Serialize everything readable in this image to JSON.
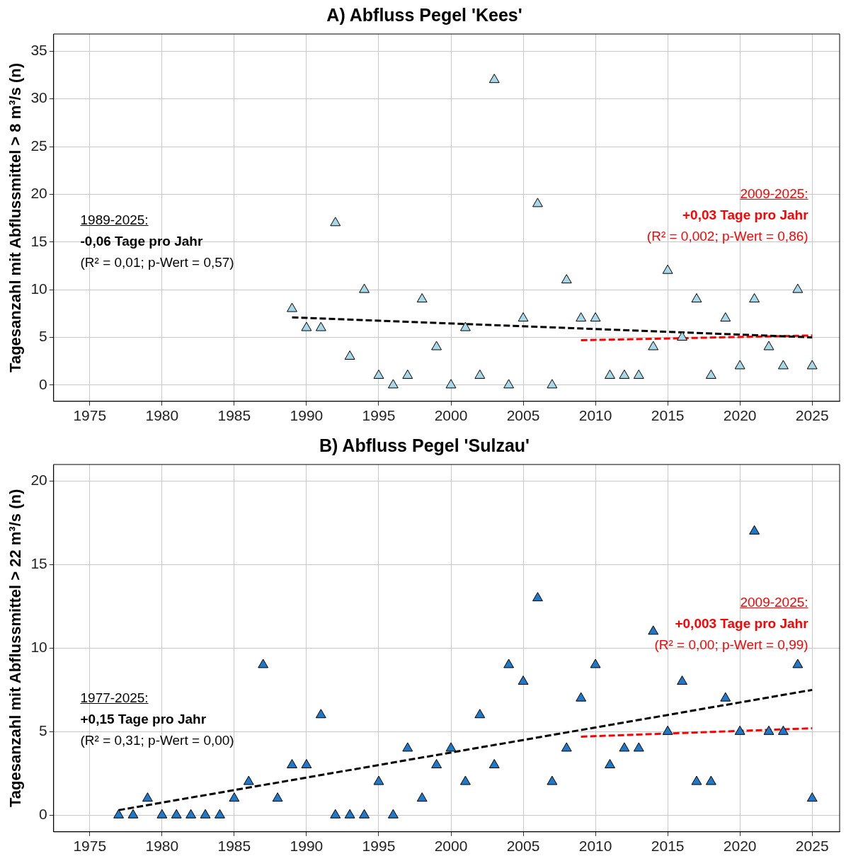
{
  "chart_data": [
    {
      "type": "scatter",
      "title": "A) Abfluss Pegel 'Kees'",
      "ylabel": "Tagesanzahl mit Abflussmittel > 8 m³/s (n)",
      "x": [
        1989,
        1990,
        1991,
        1992,
        1993,
        1994,
        1995,
        1996,
        1997,
        1998,
        1999,
        2000,
        2001,
        2002,
        2003,
        2004,
        2005,
        2006,
        2007,
        2008,
        2009,
        2010,
        2011,
        2012,
        2013,
        2014,
        2015,
        2016,
        2017,
        2018,
        2019,
        2020,
        2021,
        2022,
        2023,
        2024,
        2025
      ],
      "series": [
        {
          "type": "scatter",
          "marker": "triangle",
          "color": "#a6d8e8",
          "values": [
            8,
            6,
            6,
            17,
            3,
            10,
            1,
            0,
            1,
            9,
            4,
            0,
            6,
            1,
            32,
            0,
            7,
            19,
            0,
            11,
            7,
            7,
            1,
            1,
            1,
            4,
            12,
            5,
            9,
            1,
            7,
            2,
            9,
            4,
            2,
            10,
            2
          ]
        },
        {
          "type": "line",
          "color": "#000000",
          "line_style": "dashed",
          "x": [
            1989,
            2025
          ],
          "values": [
            7.1,
            5.0
          ]
        },
        {
          "type": "line",
          "color": "#ff0000",
          "line_style": "dashed",
          "x": [
            2009,
            2025
          ],
          "values": [
            4.7,
            5.2
          ]
        }
      ],
      "grid": true,
      "xlim": [
        1972.5,
        2026.9
      ],
      "xticks": [
        1975,
        1980,
        1985,
        1990,
        1995,
        2000,
        2005,
        2010,
        2015,
        2020,
        2025
      ],
      "ylim": [
        -1.7,
        36.8
      ],
      "yticks": [
        0,
        5,
        10,
        15,
        20,
        25,
        30,
        35
      ],
      "annotations": [
        "1989-2025:",
        "-0,06 Tage pro Jahr",
        "(R² = 0,01; p-Wert = 0,57)",
        "2009-2025:",
        "+0,03 Tage pro Jahr",
        "(R² = 0,002; p-Wert = 0,86)"
      ]
    },
    {
      "type": "scatter",
      "title": "B) Abfluss Pegel 'Sulzau'",
      "ylabel": "Tagesanzahl mit Abflussmittel > 22 m³/s (n)",
      "x": [
        1977,
        1978,
        1979,
        1980,
        1981,
        1982,
        1983,
        1984,
        1985,
        1986,
        1987,
        1988,
        1989,
        1990,
        1991,
        1992,
        1993,
        1994,
        1995,
        1996,
        1997,
        1998,
        1999,
        2000,
        2001,
        2002,
        2003,
        2004,
        2005,
        2006,
        2007,
        2008,
        2009,
        2010,
        2011,
        2012,
        2013,
        2014,
        2015,
        2016,
        2017,
        2018,
        2019,
        2020,
        2021,
        2022,
        2023,
        2024,
        2025
      ],
      "series": [
        {
          "type": "scatter",
          "marker": "triangle",
          "color": "#1f78c8",
          "values": [
            0,
            0,
            1,
            0,
            0,
            0,
            0,
            0,
            1,
            2,
            9,
            1,
            3,
            3,
            6,
            0,
            0,
            0,
            2,
            0,
            4,
            1,
            3,
            4,
            2,
            6,
            3,
            9,
            8,
            13,
            2,
            4,
            7,
            9,
            3,
            4,
            4,
            11,
            5,
            8,
            2,
            2,
            7,
            5,
            17,
            5,
            5,
            9,
            1
          ]
        },
        {
          "type": "line",
          "color": "#000000",
          "line_style": "dashed",
          "x": [
            1977,
            2025
          ],
          "values": [
            0.3,
            7.5
          ]
        },
        {
          "type": "line",
          "color": "#ff0000",
          "line_style": "dashed",
          "x": [
            2009,
            2025
          ],
          "values": [
            4.7,
            5.2
          ]
        }
      ],
      "grid": true,
      "xlim": [
        1972.5,
        2026.9
      ],
      "xticks": [
        1975,
        1980,
        1985,
        1990,
        1995,
        2000,
        2005,
        2010,
        2015,
        2020,
        2025
      ],
      "ylim": [
        -1,
        21
      ],
      "yticks": [
        0,
        5,
        10,
        15,
        20
      ],
      "annotations": [
        "1977-2025:",
        "+0,15 Tage pro Jahr",
        "(R² = 0,31; p-Wert = 0,00)",
        "2009-2025:",
        "+0,003 Tage pro Jahr",
        "(R² = 0,00; p-Wert = 0,99)"
      ]
    }
  ]
}
